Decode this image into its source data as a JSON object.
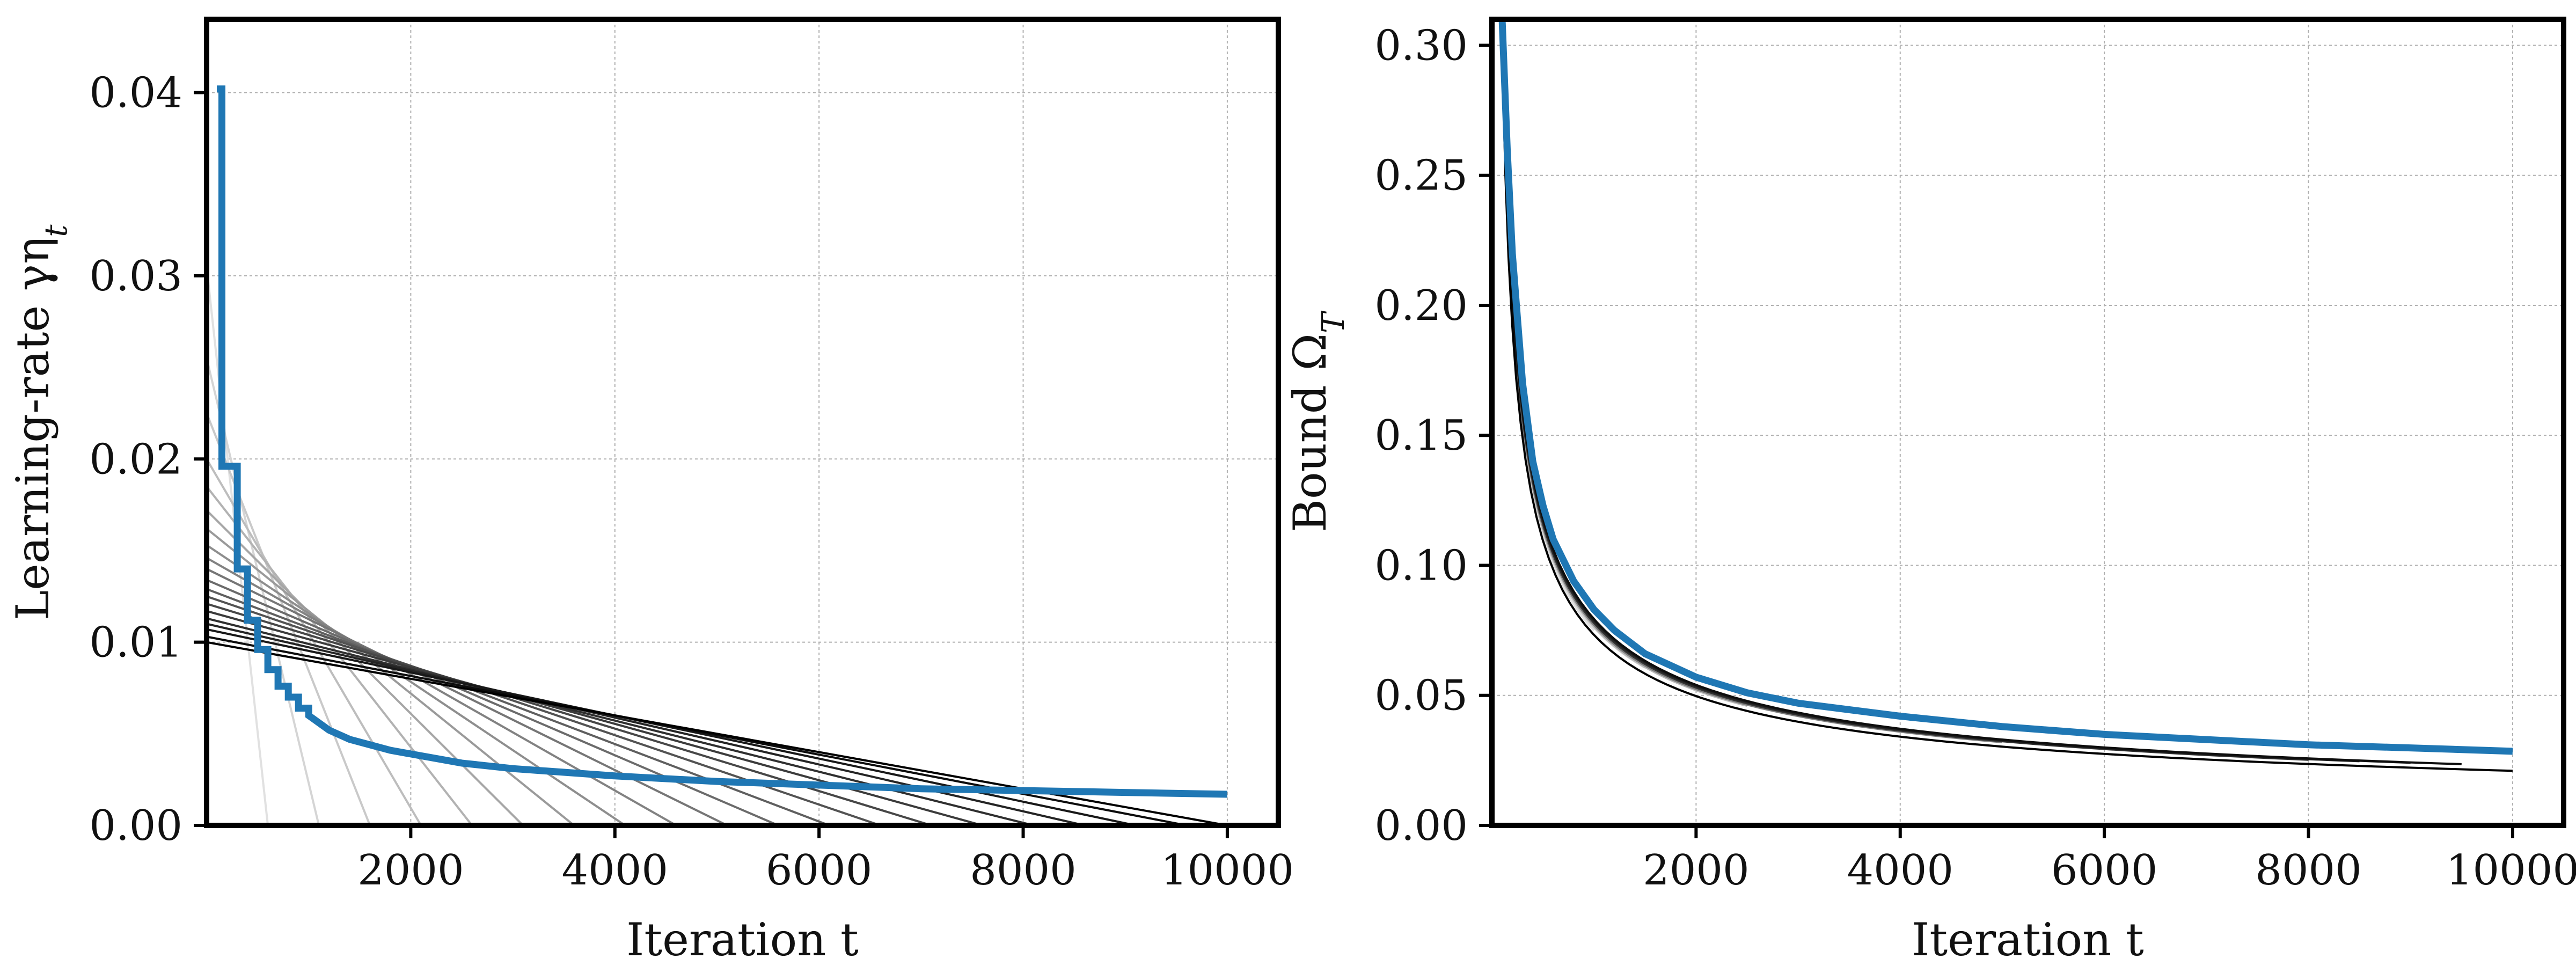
{
  "chart_data": [
    {
      "type": "line",
      "xlabel": "Iteration t",
      "ylabel": "Learning-rate γη",
      "ylabel_subscript": "t",
      "xlim": [
        0,
        10500
      ],
      "ylim": [
        0,
        0.044
      ],
      "xticks": [
        2000,
        4000,
        6000,
        8000,
        10000
      ],
      "yticks": [
        0.0,
        0.01,
        0.02,
        0.03,
        0.04
      ],
      "xtick_labels": [
        "2000",
        "4000",
        "6000",
        "8000",
        "10000"
      ],
      "ytick_labels": [
        "0.00",
        "0.01",
        "0.02",
        "0.03",
        "0.04"
      ],
      "grid": true,
      "colors": {
        "highlight": "#1f77b4",
        "family": "grayscale (light gray to black)"
      },
      "series_family": {
        "description": "linear-decay schedules eta_t = a*(1 - t/T), T from 600 to 10000, lighter gray for shorter T",
        "T": [
          600,
          1100,
          1600,
          2100,
          2600,
          3100,
          3600,
          4100,
          4600,
          5100,
          5600,
          6100,
          6600,
          7100,
          7600,
          8100,
          8600,
          9100,
          9600,
          10000
        ],
        "start_value": [
          0.0305,
          0.0255,
          0.0225,
          0.02,
          0.0185,
          0.0172,
          0.0162,
          0.0153,
          0.0146,
          0.014,
          0.0134,
          0.0129,
          0.0125,
          0.0121,
          0.0117,
          0.0113,
          0.011,
          0.0107,
          0.0103,
          0.01
        ]
      },
      "highlight_series": {
        "description": "step-wise decreasing schedule (blue)",
        "x": [
          100,
          150,
          150,
          300,
          300,
          400,
          400,
          500,
          500,
          600,
          600,
          700,
          700,
          800,
          800,
          900,
          900,
          1000,
          1000,
          1200,
          1400,
          1600,
          1800,
          2000,
          2500,
          3000,
          3500,
          4000,
          5000,
          6000,
          7000,
          8000,
          9000,
          10000
        ],
        "y": [
          0.0402,
          0.0402,
          0.0196,
          0.0196,
          0.014,
          0.014,
          0.0112,
          0.0112,
          0.0096,
          0.0096,
          0.0085,
          0.0085,
          0.0076,
          0.0076,
          0.007,
          0.007,
          0.0064,
          0.0064,
          0.006,
          0.0052,
          0.0047,
          0.0044,
          0.0041,
          0.0039,
          0.0034,
          0.0031,
          0.0029,
          0.0027,
          0.0024,
          0.0022,
          0.002,
          0.0019,
          0.0018,
          0.0017
        ]
      }
    },
    {
      "type": "line",
      "xlabel": "Iteration t",
      "ylabel": "Bound Ω",
      "ylabel_subscript": "T",
      "xlim": [
        0,
        10500
      ],
      "ylim": [
        0,
        0.31
      ],
      "xticks": [
        2000,
        4000,
        6000,
        8000,
        10000
      ],
      "yticks": [
        0.0,
        0.05,
        0.1,
        0.15,
        0.2,
        0.25,
        0.3
      ],
      "xtick_labels": [
        "2000",
        "4000",
        "6000",
        "8000",
        "10000"
      ],
      "ytick_labels": [
        "0.00",
        "0.05",
        "0.10",
        "0.15",
        "0.20",
        "0.25",
        "0.30"
      ],
      "grid": true,
      "colors": {
        "highlight": "#1f77b4",
        "family": "grayscale (light gray to black)"
      },
      "series_family": {
        "description": "bound curves for each linear-decay horizon T, each ending at its own T",
        "T": [
          1000,
          1500,
          2000,
          2500,
          3000,
          3500,
          4000,
          4500,
          5000,
          5500,
          6000,
          6500,
          7000,
          7500,
          8000,
          8500,
          9000,
          9500,
          10000
        ],
        "end_value": [
          0.065,
          0.054,
          0.047,
          0.042,
          0.039,
          0.036,
          0.034,
          0.032,
          0.03,
          0.029,
          0.028,
          0.027,
          0.026,
          0.025,
          0.024,
          0.0235,
          0.023,
          0.0225,
          0.02
        ]
      },
      "highlight_series": {
        "description": "bound for the step-wise schedule (blue)",
        "x": [
          100,
          150,
          200,
          300,
          400,
          500,
          600,
          800,
          1000,
          1200,
          1500,
          2000,
          2500,
          3000,
          4000,
          5000,
          6000,
          7000,
          8000,
          9000,
          10000
        ],
        "y": [
          0.31,
          0.26,
          0.22,
          0.17,
          0.14,
          0.123,
          0.11,
          0.094,
          0.083,
          0.075,
          0.066,
          0.057,
          0.051,
          0.047,
          0.042,
          0.038,
          0.035,
          0.033,
          0.031,
          0.0298,
          0.0285
        ]
      }
    }
  ]
}
